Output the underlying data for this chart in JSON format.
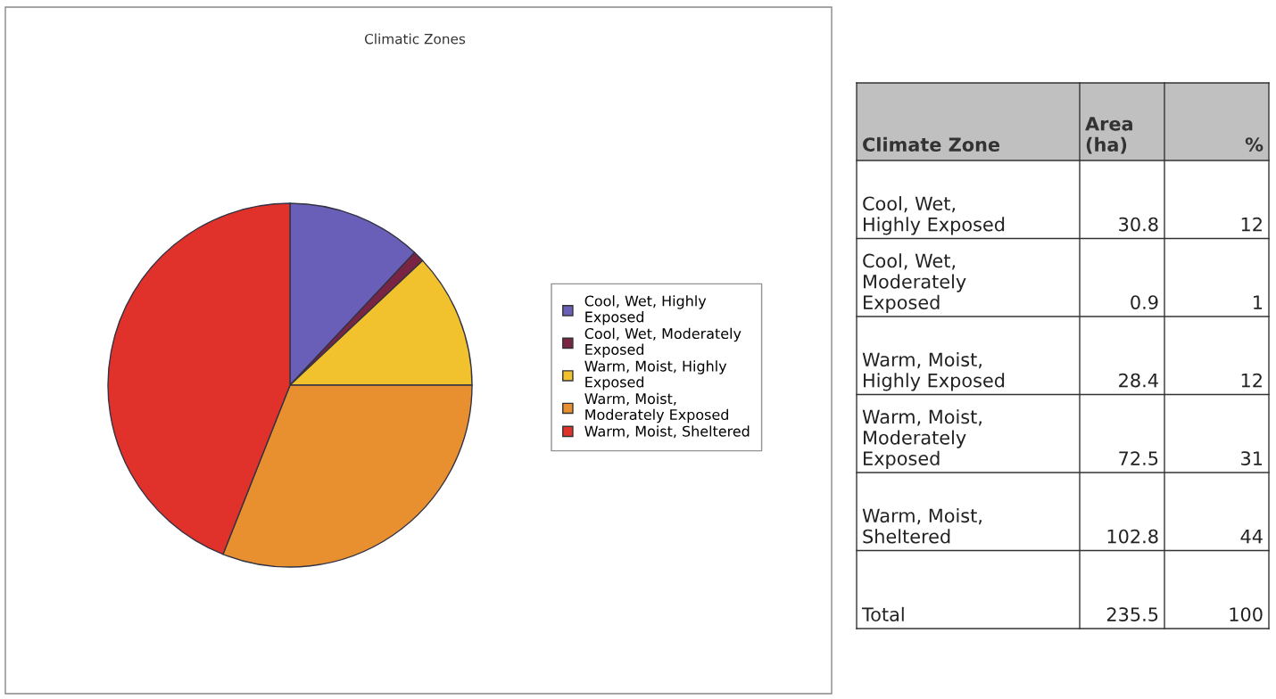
{
  "chart_data": [
    {
      "type": "pie",
      "title": "Climatic Zones",
      "categories": [
        "Cool, Wet, Highly Exposed",
        "Cool, Wet, Moderately Exposed",
        "Warm, Moist, Highly Exposed",
        "Warm, Moist, Moderately Exposed",
        "Warm, Moist, Sheltered"
      ],
      "values": [
        12,
        1,
        12,
        31,
        44
      ],
      "colors": [
        "#6a5fb8",
        "#7a2444",
        "#f2c12e",
        "#e8902f",
        "#e0322b"
      ],
      "legend": "right"
    },
    {
      "type": "other",
      "annotations": [
        "Climate Zone"
      ],
      "categories": [
        "Cool, Wet, Highly Exposed",
        "Cool, Wet, Moderately Exposed",
        "Warm, Moist, Highly Exposed",
        "Warm, Moist, Moderately Exposed",
        "Warm, Moist, Sheltered",
        "Total"
      ],
      "series": [
        {
          "name": "Area (ha)",
          "values": [
            30.8,
            0.9,
            28.4,
            72.5,
            102.8,
            235.5
          ]
        },
        {
          "name": "%",
          "values": [
            12,
            1,
            12,
            31,
            44,
            100
          ]
        }
      ],
      "data_labels": true
    }
  ]
}
